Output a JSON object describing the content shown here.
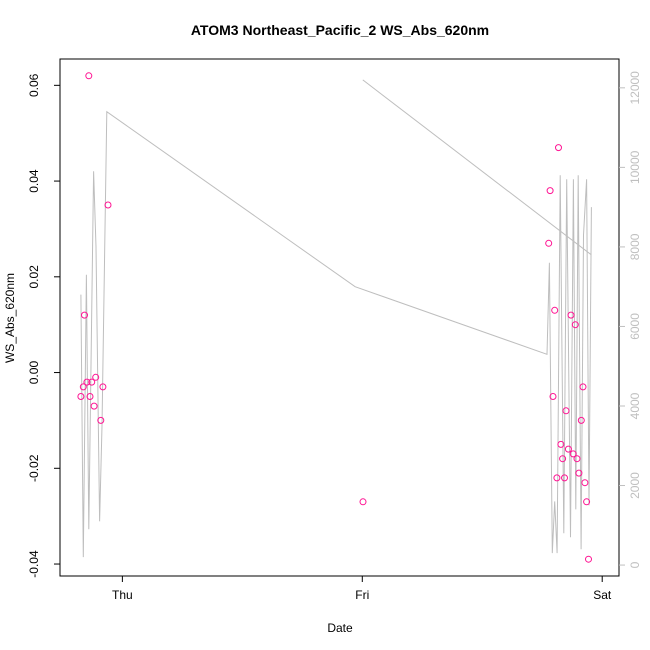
{
  "chart_data": {
    "type": "scatter",
    "title": "ATOM3 Northeast_Pacific_2 WS_Abs_620nm",
    "xlabel": "Date",
    "ylabel": "WS_Abs_620nm",
    "x_ticks": [
      {
        "label": "Thu",
        "value": 0
      },
      {
        "label": "Fri",
        "value": 1
      },
      {
        "label": "Sat",
        "value": 2
      }
    ],
    "xlim": [
      -0.26,
      2.07
    ],
    "ylim": [
      -0.0425,
      0.0655
    ],
    "y_ticks": [
      -0.04,
      -0.02,
      0.0,
      0.02,
      0.04,
      0.06
    ],
    "y_tick_labels": [
      "-0.04",
      "-0.02",
      "0.00",
      "0.02",
      "0.04",
      "0.06"
    ],
    "y2_ticks": [
      0,
      2000,
      4000,
      6000,
      8000,
      10000,
      12000
    ],
    "y2_tick_labels": [
      "0",
      "2000",
      "4000",
      "6000",
      "8000",
      "10000",
      "12000"
    ],
    "y2lim": [
      -275,
      12725
    ],
    "grid": false,
    "series": [
      {
        "role": "points",
        "color": "#ff1493",
        "points": [
          [
            -0.173,
            -0.005
          ],
          [
            -0.163,
            -0.003
          ],
          [
            -0.158,
            0.012
          ],
          [
            -0.148,
            -0.002
          ],
          [
            -0.14,
            0.062
          ],
          [
            -0.135,
            -0.005
          ],
          [
            -0.128,
            -0.002
          ],
          [
            -0.118,
            -0.007
          ],
          [
            -0.111,
            -0.001
          ],
          [
            -0.09,
            -0.01
          ],
          [
            -0.081,
            -0.003
          ],
          [
            -0.06,
            0.035
          ],
          [
            1.003,
            -0.027
          ],
          [
            1.777,
            0.027
          ],
          [
            1.783,
            0.038
          ],
          [
            1.795,
            -0.005
          ],
          [
            1.802,
            0.013
          ],
          [
            1.811,
            -0.022
          ],
          [
            1.818,
            0.047
          ],
          [
            1.828,
            -0.015
          ],
          [
            1.835,
            -0.018
          ],
          [
            1.843,
            -0.022
          ],
          [
            1.849,
            -0.008
          ],
          [
            1.859,
            -0.016
          ],
          [
            1.87,
            0.012
          ],
          [
            1.879,
            -0.017
          ],
          [
            1.888,
            0.01
          ],
          [
            1.895,
            -0.018
          ],
          [
            1.903,
            -0.021
          ],
          [
            1.913,
            -0.01
          ],
          [
            1.92,
            -0.003
          ],
          [
            1.928,
            -0.023
          ],
          [
            1.935,
            -0.027
          ],
          [
            1.943,
            -0.039
          ]
        ]
      },
      {
        "role": "right-axis-line",
        "color": "#bebebe",
        "points": [
          [
            -0.173,
            6800
          ],
          [
            -0.163,
            200
          ],
          [
            -0.15,
            7300
          ],
          [
            -0.14,
            900
          ],
          [
            -0.12,
            9900
          ],
          [
            -0.11,
            8000
          ],
          [
            -0.095,
            1100
          ],
          [
            -0.085,
            3500
          ],
          [
            -0.065,
            11400
          ],
          [
            0.97,
            7000
          ],
          [
            1.77,
            5300
          ],
          [
            1.78,
            7600
          ],
          [
            1.792,
            300
          ],
          [
            1.802,
            1600
          ],
          [
            1.812,
            300
          ],
          [
            1.825,
            9800
          ],
          [
            1.84,
            800
          ],
          [
            1.852,
            9700
          ],
          [
            1.868,
            700
          ],
          [
            1.88,
            9700
          ],
          [
            1.89,
            1400
          ],
          [
            1.9,
            9800
          ],
          [
            1.912,
            400
          ],
          [
            1.922,
            8300
          ],
          [
            1.935,
            9700
          ],
          [
            1.945,
            1500
          ],
          [
            1.955,
            9000
          ]
        ]
      },
      {
        "role": "right-axis-line-2",
        "color": "#bebebe",
        "points": [
          [
            1.002,
            12200
          ],
          [
            1.955,
            7800
          ]
        ]
      }
    ]
  }
}
